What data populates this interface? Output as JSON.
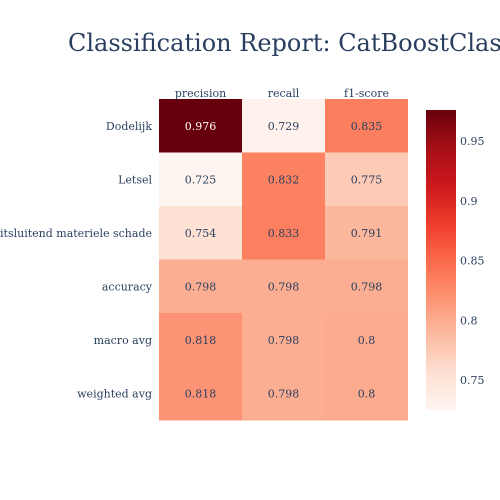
{
  "chart_data": {
    "type": "heatmap",
    "title": "Classification Report: CatBoostClassifier",
    "columns": [
      "precision",
      "recall",
      "f1-score"
    ],
    "rows": [
      "Dodelijk",
      "Letsel",
      "Uitsluitend materiele schade",
      "accuracy",
      "macro avg",
      "weighted avg"
    ],
    "values": [
      [
        0.976,
        0.729,
        0.835
      ],
      [
        0.725,
        0.832,
        0.775
      ],
      [
        0.754,
        0.833,
        0.791
      ],
      [
        0.798,
        0.798,
        0.798
      ],
      [
        0.818,
        0.798,
        0.8
      ],
      [
        0.818,
        0.798,
        0.8
      ]
    ],
    "value_labels": [
      [
        "0.976",
        "0.729",
        "0.835"
      ],
      [
        "0.725",
        "0.832",
        "0.775"
      ],
      [
        "0.754",
        "0.833",
        "0.791"
      ],
      [
        "0.798",
        "0.798",
        "0.798"
      ],
      [
        "0.818",
        "0.798",
        "0.8"
      ],
      [
        "0.818",
        "0.798",
        "0.8"
      ]
    ],
    "colorscale": "Reds",
    "zmin": 0.725,
    "zmax": 0.976,
    "colorbar_ticks": [
      "0.75",
      "0.8",
      "0.85",
      "0.9",
      "0.95"
    ],
    "colorbar_tick_values": [
      0.75,
      0.8,
      0.85,
      0.9,
      0.95
    ],
    "legend_placement": "right",
    "grid": false
  }
}
